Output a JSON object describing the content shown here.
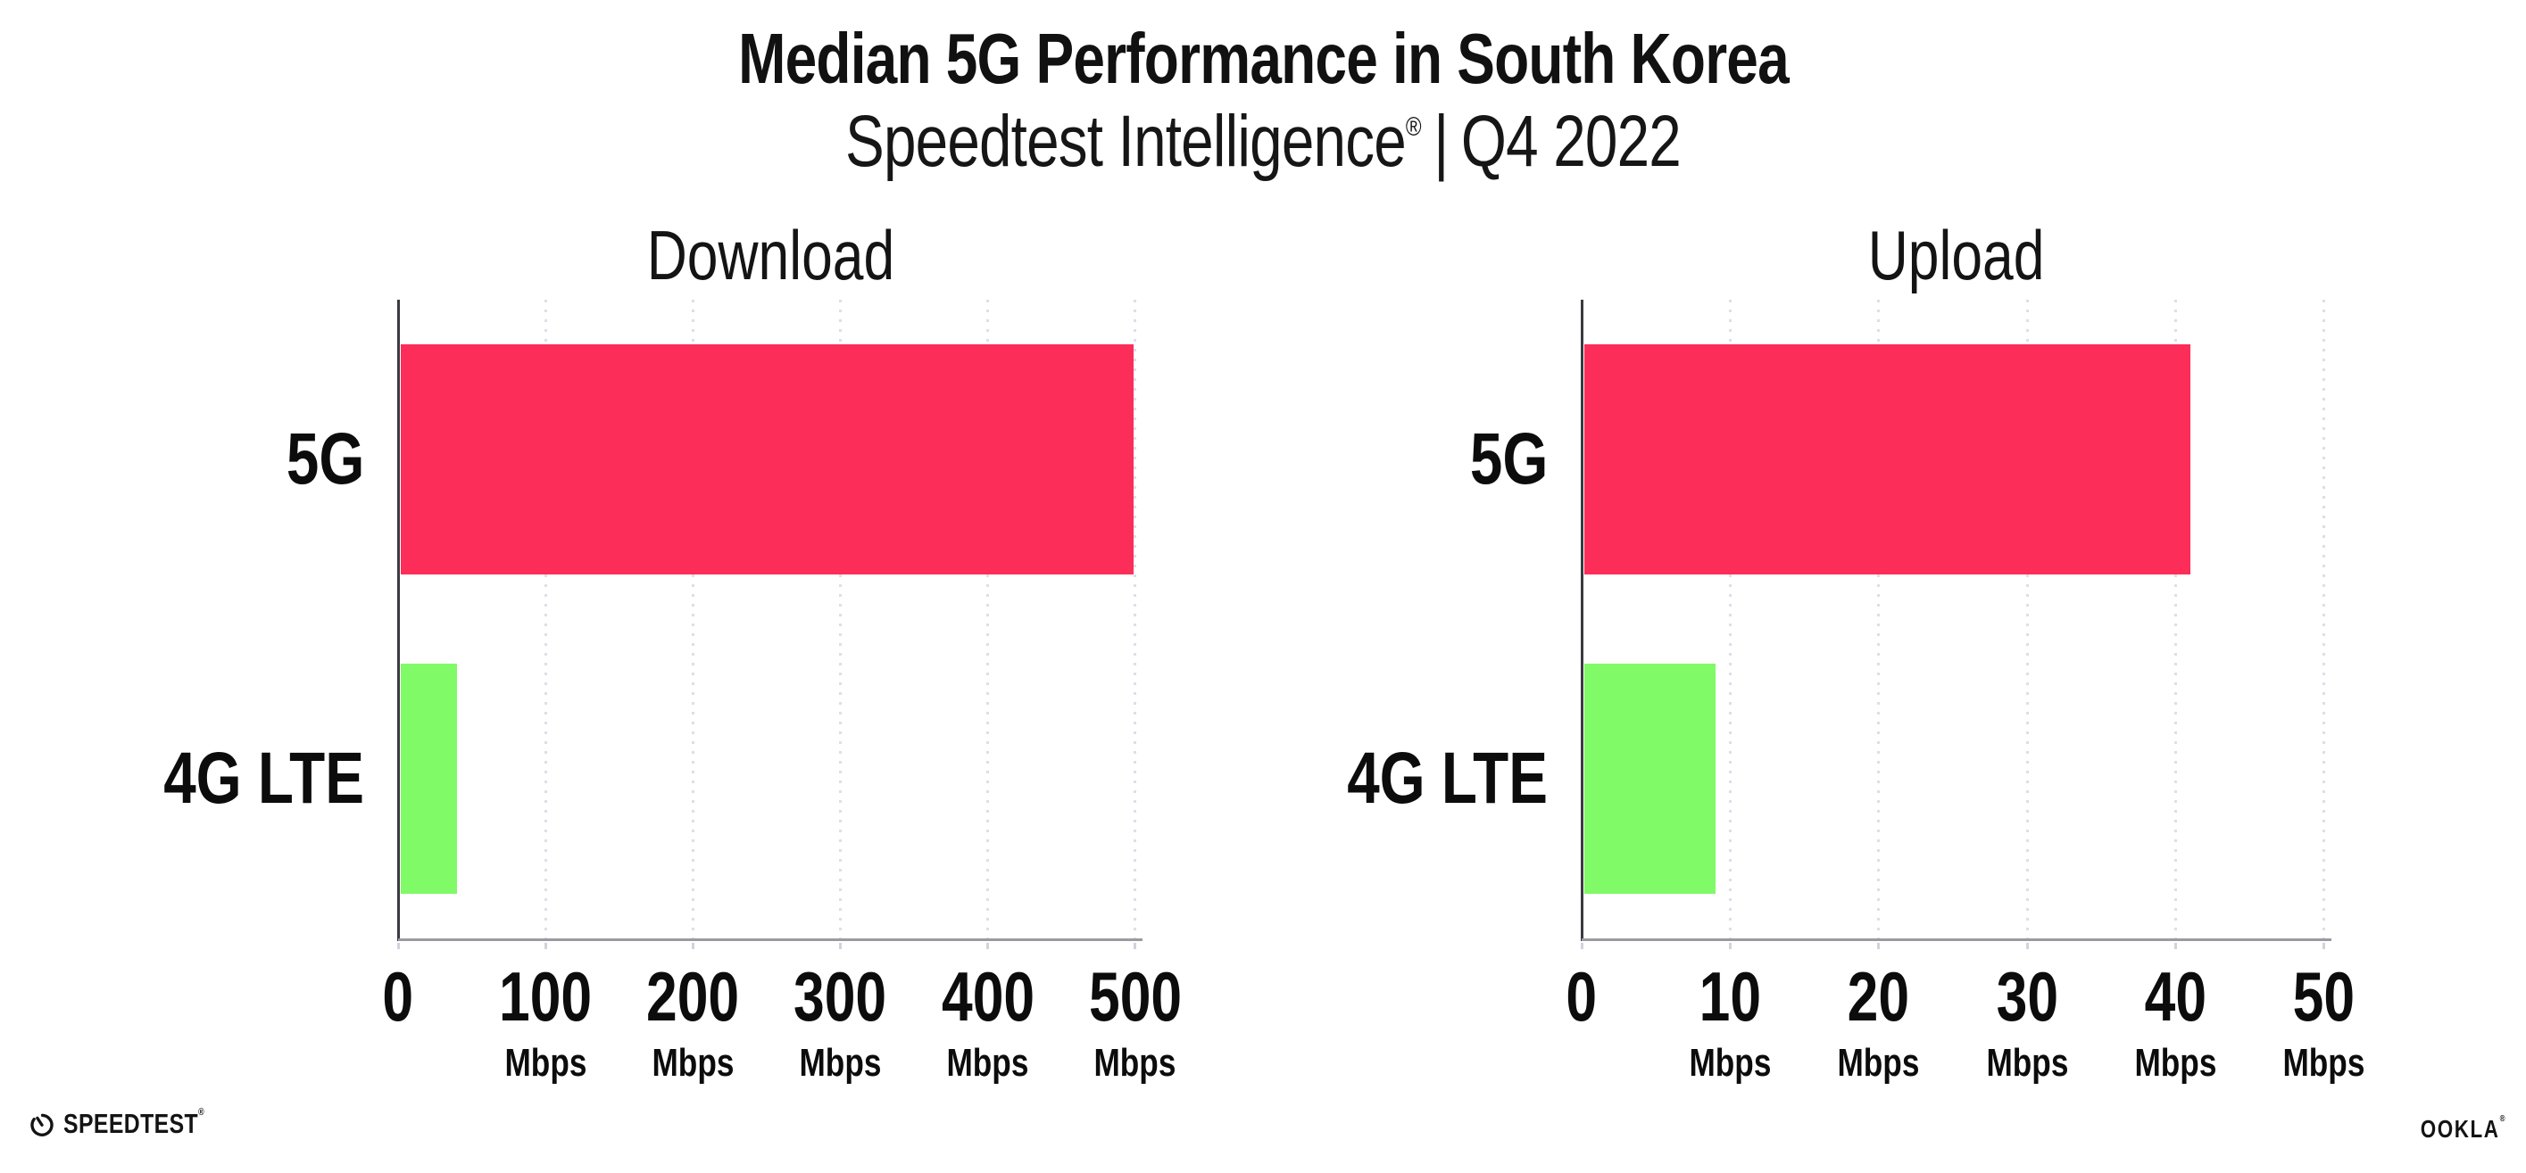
{
  "header": {
    "title": "Median 5G Performance in South Korea",
    "subtitle_brand": "Speedtest Intelligence",
    "subtitle_reg": "®",
    "subtitle_divider": "|",
    "subtitle_period": "Q4 2022"
  },
  "footer": {
    "speedtest_label": "SPEEDTEST",
    "speedtest_mark": "®",
    "ookla_label": "OOKLA",
    "ookla_mark": "®"
  },
  "colors": {
    "bar_5g": "#FC2D58",
    "bar_4g_lte": "#80FA66",
    "gridline": "#DEDEE8",
    "x_axis_line": "#9A9AA2",
    "y_axis_line": "#3A3A40",
    "tick_mark": "#D2D2DC",
    "text": "#111111"
  },
  "chart_data": [
    {
      "type": "bar",
      "orientation": "horizontal",
      "title": "Download",
      "categories": [
        "5G",
        "4G LTE"
      ],
      "values": [
        499,
        40
      ],
      "unit": "Mbps",
      "xlabel": "",
      "ylabel": "",
      "xticks": [
        0,
        100,
        200,
        300,
        400,
        500
      ],
      "xlim": [
        0,
        505
      ],
      "grid": "dotted-vertical",
      "legend": "none",
      "bar_colors": [
        "#FC2D58",
        "#80FA66"
      ]
    },
    {
      "type": "bar",
      "orientation": "horizontal",
      "title": "Upload",
      "categories": [
        "5G",
        "4G LTE"
      ],
      "values": [
        41,
        9
      ],
      "unit": "Mbps",
      "xlabel": "",
      "ylabel": "",
      "xticks": [
        0,
        10,
        20,
        30,
        40,
        50
      ],
      "xlim": [
        0,
        50.5
      ],
      "grid": "dotted-vertical",
      "legend": "none",
      "bar_colors": [
        "#FC2D58",
        "#80FA66"
      ]
    }
  ]
}
